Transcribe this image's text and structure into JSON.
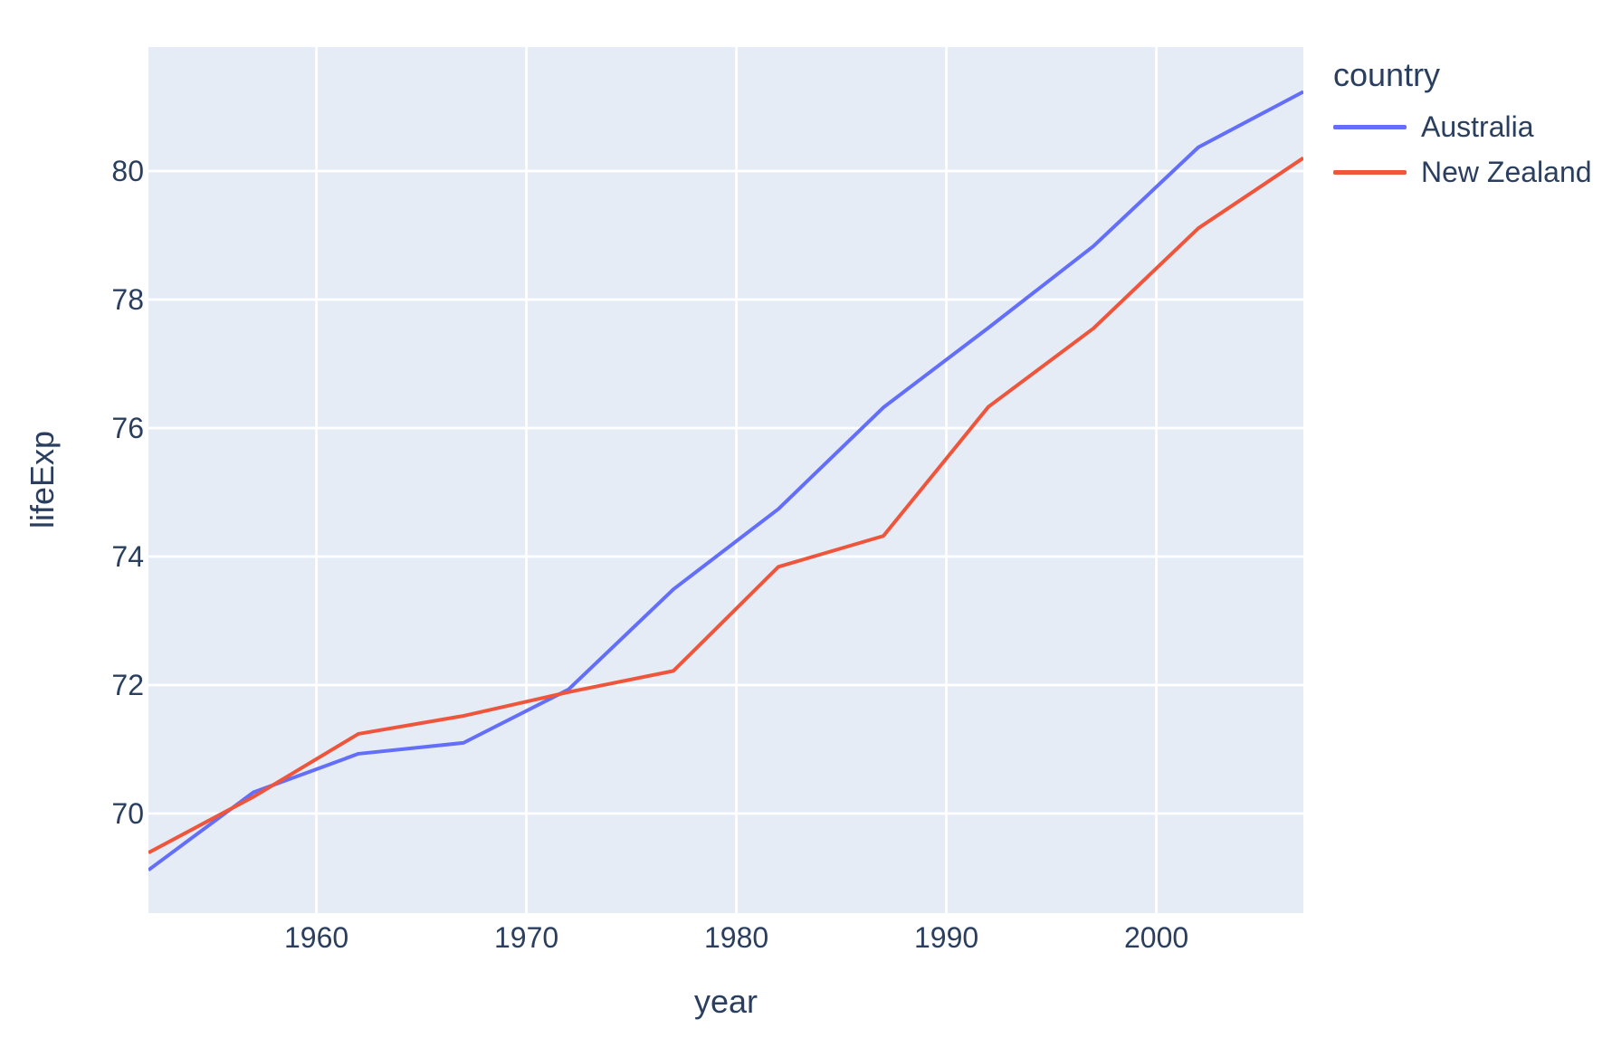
{
  "chart_data": {
    "type": "line",
    "title": "",
    "xlabel": "year",
    "ylabel": "lifeExp",
    "legend_title": "country",
    "legend_position": "top-right-outside",
    "x": [
      1952,
      1957,
      1962,
      1967,
      1972,
      1977,
      1982,
      1987,
      1992,
      1997,
      2002,
      2007
    ],
    "series": [
      {
        "name": "Australia",
        "color": "#636efa",
        "values": [
          69.12,
          70.33,
          70.93,
          71.1,
          71.93,
          73.49,
          74.74,
          76.32,
          77.56,
          78.83,
          80.37,
          81.235
        ]
      },
      {
        "name": "New Zealand",
        "color": "#ef553b",
        "values": [
          69.39,
          70.26,
          71.24,
          71.52,
          71.89,
          72.22,
          73.84,
          74.32,
          76.33,
          77.55,
          79.11,
          80.204
        ]
      }
    ],
    "xlim": [
      1952,
      2007
    ],
    "ylim": [
      68.45,
      81.93
    ],
    "xticks": [
      1960,
      1970,
      1980,
      1990,
      2000
    ],
    "yticks": [
      70,
      72,
      74,
      76,
      78,
      80
    ],
    "grid": true,
    "colors": {
      "paper_bg": "#ffffff",
      "plot_bg": "#e5ecf6",
      "grid": "#ffffff",
      "text": "#2a3f5f",
      "tick_text": "#2a3f5f"
    }
  }
}
